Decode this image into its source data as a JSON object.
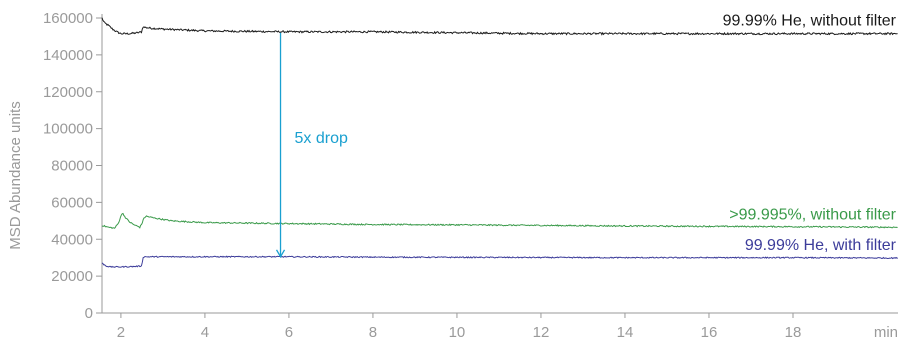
{
  "chart_data": {
    "type": "line",
    "title": "",
    "ylabel": "MSD Abundance units",
    "xlabel": "min",
    "xlim": [
      1.55,
      20.5
    ],
    "ylim": [
      0,
      160000
    ],
    "x_ticks": [
      2,
      4,
      6,
      8,
      10,
      12,
      14,
      16,
      18
    ],
    "x_tick_labels": [
      "2",
      "4",
      "6",
      "8",
      "10",
      "12",
      "14",
      "16",
      "18"
    ],
    "y_ticks": [
      0,
      20000,
      40000,
      60000,
      80000,
      100000,
      120000,
      140000,
      160000
    ],
    "y_tick_labels": [
      "0",
      "20000",
      "40000",
      "60000",
      "80000",
      "100000",
      "120000",
      "140000",
      "160000"
    ],
    "grid": false,
    "series": [
      {
        "name": "99.99% He, without filter",
        "color": "#1a1a1a",
        "noise": 500,
        "x": [
          1.55,
          1.6,
          1.7,
          1.8,
          1.9,
          2.0,
          2.2,
          2.4,
          2.5,
          2.52,
          2.55,
          2.7,
          3.0,
          4,
          6,
          8,
          10,
          12,
          14,
          16,
          18,
          20.5
        ],
        "y": [
          160000,
          157500,
          156000,
          154000,
          152500,
          151500,
          151500,
          152000,
          152500,
          155500,
          155000,
          154500,
          154000,
          153000,
          152500,
          152500,
          152000,
          151500,
          151500,
          151500,
          151500,
          151500
        ]
      },
      {
        "name": ">99.995%, without filter",
        "color": "#3a9a4a",
        "noise": 350,
        "x": [
          1.55,
          1.7,
          1.85,
          1.95,
          2.0,
          2.05,
          2.1,
          2.2,
          2.3,
          2.4,
          2.45,
          2.5,
          2.55,
          2.6,
          2.8,
          3.2,
          4,
          6,
          8,
          10,
          12,
          14,
          16,
          18,
          20.5
        ],
        "y": [
          47500,
          46500,
          46000,
          49000,
          53000,
          54000,
          52000,
          49500,
          48000,
          47000,
          46500,
          48500,
          51500,
          52500,
          51500,
          50000,
          49000,
          48500,
          48000,
          47800,
          47500,
          47200,
          47000,
          46800,
          46500
        ]
      },
      {
        "name": "99.99% He, with filter",
        "color": "#3c3c9a",
        "noise": 300,
        "x": [
          1.55,
          1.65,
          1.75,
          2.0,
          2.3,
          2.5,
          2.52,
          2.55,
          3.0,
          4,
          6,
          8,
          10,
          12,
          14,
          16,
          18,
          20.5
        ],
        "y": [
          27000,
          25500,
          25000,
          25000,
          25200,
          25500,
          30000,
          30500,
          30500,
          30500,
          30500,
          30300,
          30200,
          30100,
          30000,
          30000,
          30000,
          29800
        ]
      }
    ],
    "annotations": [
      {
        "text": "5x drop",
        "color": "#1aa0d0",
        "arrow_x": 5.8,
        "arrow_from": 152000,
        "arrow_to": 30500
      }
    ]
  }
}
